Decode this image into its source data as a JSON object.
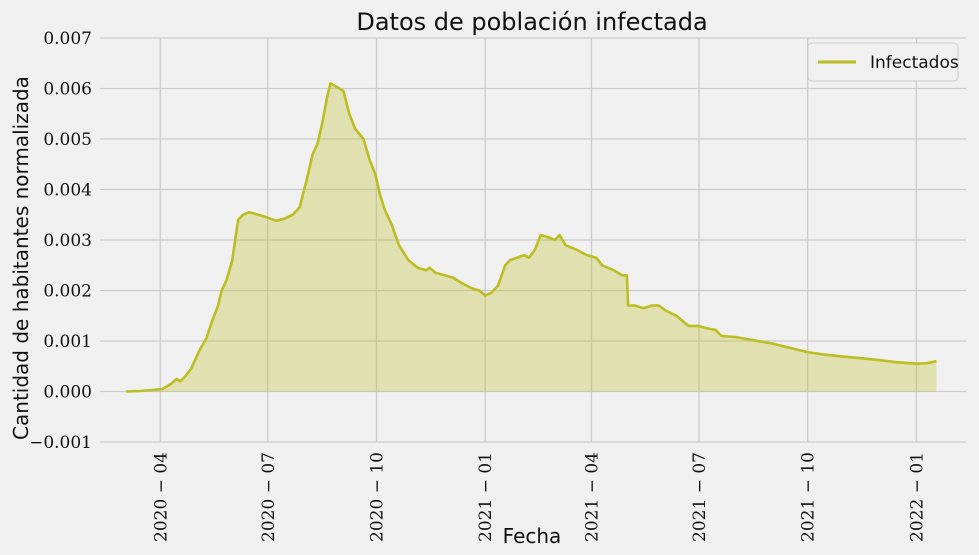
{
  "chart_data": {
    "type": "area",
    "title": "Datos de población infectada",
    "xlabel": "Fecha",
    "ylabel": "Cantidad de habitantes normalizada",
    "ylim": [
      -0.001,
      0.007
    ],
    "xlim": [
      "2020-02-10",
      "2022-02-12"
    ],
    "y_ticks": [
      "−0.001",
      "0.000",
      "0.001",
      "0.002",
      "0.003",
      "0.004",
      "0.005",
      "0.006",
      "0.007"
    ],
    "x_ticks": [
      {
        "date": "2020-04-01",
        "label": "2020 − 04"
      },
      {
        "date": "2020-07-01",
        "label": "2020 − 07"
      },
      {
        "date": "2020-10-01",
        "label": "2020 − 10"
      },
      {
        "date": "2021-01-01",
        "label": "2021 − 01"
      },
      {
        "date": "2021-04-01",
        "label": "2021 − 04"
      },
      {
        "date": "2021-07-01",
        "label": "2021 − 07"
      },
      {
        "date": "2021-10-01",
        "label": "2021 − 10"
      },
      {
        "date": "2022-01-01",
        "label": "2022 − 01"
      }
    ],
    "grid": true,
    "legend_position": "top-right",
    "colors": {
      "line": "#bcbd22",
      "fill": "#bcbd22",
      "background": "#f0f0f0",
      "grid": "#cbcbcb"
    },
    "series": [
      {
        "name": "Infectados",
        "points": [
          [
            "2020-03-03",
            0.0
          ],
          [
            "2020-03-15",
            1e-05
          ],
          [
            "2020-03-25",
            3e-05
          ],
          [
            "2020-04-03",
            5e-05
          ],
          [
            "2020-04-10",
            0.00015
          ],
          [
            "2020-04-15",
            0.00025
          ],
          [
            "2020-04-18",
            0.0002
          ],
          [
            "2020-04-22",
            0.0003
          ],
          [
            "2020-04-27",
            0.00045
          ],
          [
            "2020-05-01",
            0.00065
          ],
          [
            "2020-05-05",
            0.00085
          ],
          [
            "2020-05-10",
            0.00105
          ],
          [
            "2020-05-15",
            0.0014
          ],
          [
            "2020-05-20",
            0.0017
          ],
          [
            "2020-05-23",
            0.002
          ],
          [
            "2020-05-27",
            0.0022
          ],
          [
            "2020-06-01",
            0.0026
          ],
          [
            "2020-06-04",
            0.0031
          ],
          [
            "2020-06-06",
            0.0034
          ],
          [
            "2020-06-10",
            0.0035
          ],
          [
            "2020-06-15",
            0.00355
          ],
          [
            "2020-06-20",
            0.00352
          ],
          [
            "2020-06-30",
            0.00345
          ],
          [
            "2020-07-08",
            0.00338
          ],
          [
            "2020-07-15",
            0.00342
          ],
          [
            "2020-07-22",
            0.0035
          ],
          [
            "2020-07-28",
            0.00365
          ],
          [
            "2020-08-03",
            0.0042
          ],
          [
            "2020-08-08",
            0.0047
          ],
          [
            "2020-08-12",
            0.0049
          ],
          [
            "2020-08-16",
            0.0053
          ],
          [
            "2020-08-20",
            0.0058
          ],
          [
            "2020-08-23",
            0.0061
          ],
          [
            "2020-08-27",
            0.00605
          ],
          [
            "2020-09-03",
            0.00595
          ],
          [
            "2020-09-08",
            0.0055
          ],
          [
            "2020-09-13",
            0.0052
          ],
          [
            "2020-09-20",
            0.005
          ],
          [
            "2020-09-25",
            0.0046
          ],
          [
            "2020-09-30",
            0.0043
          ],
          [
            "2020-10-04",
            0.0039
          ],
          [
            "2020-10-08",
            0.0036
          ],
          [
            "2020-10-14",
            0.0033
          ],
          [
            "2020-10-20",
            0.0029
          ],
          [
            "2020-10-28",
            0.0026
          ],
          [
            "2020-11-05",
            0.00245
          ],
          [
            "2020-11-12",
            0.0024
          ],
          [
            "2020-11-15",
            0.00245
          ],
          [
            "2020-11-20",
            0.00235
          ],
          [
            "2020-11-28",
            0.0023
          ],
          [
            "2020-12-05",
            0.00225
          ],
          [
            "2020-12-12",
            0.00215
          ],
          [
            "2020-12-20",
            0.00205
          ],
          [
            "2020-12-27",
            0.002
          ],
          [
            "2021-01-01",
            0.0019
          ],
          [
            "2021-01-06",
            0.00195
          ],
          [
            "2021-01-12",
            0.0021
          ],
          [
            "2021-01-18",
            0.0025
          ],
          [
            "2021-01-22",
            0.0026
          ],
          [
            "2021-01-28",
            0.00265
          ],
          [
            "2021-02-03",
            0.0027
          ],
          [
            "2021-02-07",
            0.00265
          ],
          [
            "2021-02-12",
            0.0028
          ],
          [
            "2021-02-17",
            0.0031
          ],
          [
            "2021-02-24",
            0.00305
          ],
          [
            "2021-03-01",
            0.003
          ],
          [
            "2021-03-05",
            0.0031
          ],
          [
            "2021-03-10",
            0.0029
          ],
          [
            "2021-03-20",
            0.0028
          ],
          [
            "2021-03-28",
            0.0027
          ],
          [
            "2021-04-05",
            0.00265
          ],
          [
            "2021-04-10",
            0.0025
          ],
          [
            "2021-04-20",
            0.0024
          ],
          [
            "2021-04-27",
            0.0023
          ],
          [
            "2021-05-01",
            0.0023
          ],
          [
            "2021-05-02",
            0.0017
          ],
          [
            "2021-05-08",
            0.0017
          ],
          [
            "2021-05-15",
            0.00165
          ],
          [
            "2021-05-22",
            0.0017
          ],
          [
            "2021-05-28",
            0.0017
          ],
          [
            "2021-06-03",
            0.0016
          ],
          [
            "2021-06-12",
            0.0015
          ],
          [
            "2021-06-22",
            0.0013
          ],
          [
            "2021-06-30",
            0.0013
          ],
          [
            "2021-07-08",
            0.00125
          ],
          [
            "2021-07-15",
            0.00122
          ],
          [
            "2021-07-20",
            0.0011
          ],
          [
            "2021-08-01",
            0.00108
          ],
          [
            "2021-08-15",
            0.00102
          ],
          [
            "2021-09-01",
            0.00095
          ],
          [
            "2021-09-15",
            0.00087
          ],
          [
            "2021-10-01",
            0.00078
          ],
          [
            "2021-10-15",
            0.00073
          ],
          [
            "2021-11-01",
            0.00069
          ],
          [
            "2021-11-15",
            0.00066
          ],
          [
            "2021-12-01",
            0.00062
          ],
          [
            "2021-12-15",
            0.00058
          ],
          [
            "2022-01-01",
            0.00055
          ],
          [
            "2022-01-10",
            0.00056
          ],
          [
            "2022-01-18",
            0.0006
          ]
        ]
      }
    ]
  }
}
